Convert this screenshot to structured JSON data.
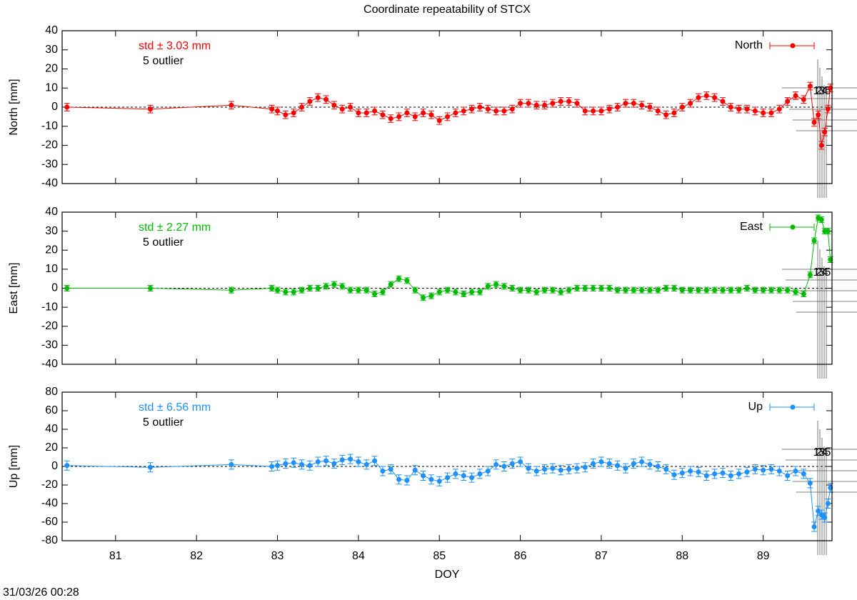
{
  "title": "Coordinate repeatability of STCX",
  "timestamp": "31/03/26 00:28",
  "chart_data": [
    {
      "type": "line",
      "ylabel": "North [mm]",
      "annotation": "std ± 3.03 mm",
      "outlier_note": "5 outlier",
      "outlier_labels": [
        "1",
        "2",
        "3",
        "4",
        "5"
      ],
      "x": [
        80.4,
        81.43,
        82.43,
        82.93,
        83.0,
        83.1,
        83.2,
        83.3,
        83.4,
        83.5,
        83.6,
        83.7,
        83.8,
        83.9,
        84.0,
        84.1,
        84.2,
        84.3,
        84.4,
        84.5,
        84.6,
        84.7,
        84.8,
        84.9,
        85.0,
        85.1,
        85.2,
        85.3,
        85.4,
        85.5,
        85.6,
        85.7,
        85.8,
        85.9,
        86.0,
        86.1,
        86.2,
        86.3,
        86.4,
        86.5,
        86.6,
        86.7,
        86.8,
        86.9,
        87.0,
        87.1,
        87.2,
        87.3,
        87.4,
        87.5,
        87.6,
        87.7,
        87.8,
        87.9,
        88.0,
        88.1,
        88.2,
        88.3,
        88.4,
        88.5,
        88.6,
        88.7,
        88.8,
        88.9,
        89.0,
        89.1,
        89.2,
        89.3,
        89.4,
        89.5,
        89.58,
        89.63,
        89.68,
        89.72,
        89.76,
        89.8,
        89.83
      ],
      "series": [
        {
          "name": "North",
          "color": "#ff0000",
          "error": 2,
          "values": [
            0,
            -1,
            1,
            -1,
            -2,
            -4,
            -3,
            0,
            3,
            5,
            4,
            1,
            -1,
            0,
            -3,
            -3,
            -2,
            -4,
            -6,
            -5,
            -3,
            -5,
            -3,
            -4,
            -7,
            -5,
            -3,
            -2,
            -1,
            0,
            -1,
            -2,
            -2,
            -1,
            2,
            2,
            1,
            1,
            2,
            3,
            3,
            2,
            -2,
            -2,
            -2,
            -1,
            0,
            2,
            2,
            1,
            0,
            -2,
            -4,
            -3,
            0,
            2,
            5,
            6,
            5,
            3,
            0,
            -1,
            -1,
            -2,
            -3,
            -3,
            -1,
            3,
            6,
            4,
            11,
            -8,
            -4,
            -20,
            -13,
            -1,
            10
          ]
        }
      ],
      "xlim": [
        80.34,
        89.85
      ],
      "xticks": [
        81,
        82,
        83,
        84,
        85,
        86,
        87,
        88,
        89
      ],
      "ylim": [
        -40,
        40
      ],
      "yticks": [
        -40,
        -30,
        -20,
        -10,
        0,
        10,
        20,
        30,
        40
      ],
      "reference_line": 0
    },
    {
      "type": "line",
      "ylabel": "East [mm]",
      "annotation": "std ± 2.27 mm",
      "outlier_note": "5 outlier",
      "outlier_labels": [
        "1",
        "2",
        "3",
        "4",
        "5"
      ],
      "x": [
        80.4,
        81.43,
        82.43,
        82.93,
        83.0,
        83.1,
        83.2,
        83.3,
        83.4,
        83.5,
        83.6,
        83.7,
        83.8,
        83.9,
        84.0,
        84.1,
        84.2,
        84.3,
        84.4,
        84.5,
        84.6,
        84.7,
        84.8,
        84.9,
        85.0,
        85.1,
        85.2,
        85.3,
        85.4,
        85.5,
        85.6,
        85.7,
        85.8,
        85.9,
        86.0,
        86.1,
        86.2,
        86.3,
        86.4,
        86.5,
        86.6,
        86.7,
        86.8,
        86.9,
        87.0,
        87.1,
        87.2,
        87.3,
        87.4,
        87.5,
        87.6,
        87.7,
        87.8,
        87.9,
        88.0,
        88.1,
        88.2,
        88.3,
        88.4,
        88.5,
        88.6,
        88.7,
        88.8,
        88.9,
        89.0,
        89.1,
        89.2,
        89.3,
        89.4,
        89.5,
        89.58,
        89.63,
        89.68,
        89.72,
        89.76,
        89.8,
        89.83
      ],
      "series": [
        {
          "name": "East",
          "color": "#00bb00",
          "error": 1.5,
          "values": [
            0,
            0,
            -1,
            0,
            -1,
            -2,
            -2,
            -1,
            0,
            0,
            1,
            2,
            1,
            -1,
            -1,
            -1,
            -3,
            -2,
            2,
            5,
            4,
            -1,
            -5,
            -4,
            -2,
            -1,
            -2,
            -3,
            -2,
            -2,
            1,
            2,
            1,
            0,
            -1,
            -1,
            -2,
            -1,
            -1,
            -2,
            -1,
            0,
            0,
            0,
            0,
            0,
            -1,
            -1,
            -1,
            -1,
            -1,
            -1,
            0,
            0,
            -1,
            -1,
            -1,
            -1,
            -1,
            -1,
            -1,
            -1,
            0,
            -1,
            -1,
            -1,
            -1,
            -1,
            -2,
            -3,
            7,
            25,
            37,
            36,
            30,
            30,
            15
          ]
        }
      ],
      "xlim": [
        80.34,
        89.85
      ],
      "xticks": [
        81,
        82,
        83,
        84,
        85,
        86,
        87,
        88,
        89
      ],
      "ylim": [
        -40,
        40
      ],
      "yticks": [
        -40,
        -30,
        -20,
        -10,
        0,
        10,
        20,
        30,
        40
      ],
      "reference_line": 0
    },
    {
      "type": "line",
      "ylabel": "Up [mm]",
      "xlabel": "DOY",
      "annotation": "std ± 6.56 mm",
      "outlier_note": "5 outlier",
      "outlier_labels": [
        "1",
        "2",
        "3",
        "4",
        "5"
      ],
      "x": [
        80.4,
        81.43,
        82.43,
        82.93,
        83.0,
        83.1,
        83.2,
        83.3,
        83.4,
        83.5,
        83.6,
        83.7,
        83.8,
        83.9,
        84.0,
        84.1,
        84.2,
        84.3,
        84.4,
        84.5,
        84.6,
        84.7,
        84.8,
        84.9,
        85.0,
        85.1,
        85.2,
        85.3,
        85.4,
        85.5,
        85.6,
        85.7,
        85.8,
        85.9,
        86.0,
        86.1,
        86.2,
        86.3,
        86.4,
        86.5,
        86.6,
        86.7,
        86.8,
        86.9,
        87.0,
        87.1,
        87.2,
        87.3,
        87.4,
        87.5,
        87.6,
        87.7,
        87.8,
        87.9,
        88.0,
        88.1,
        88.2,
        88.3,
        88.4,
        88.5,
        88.6,
        88.7,
        88.8,
        88.9,
        89.0,
        89.1,
        89.2,
        89.3,
        89.4,
        89.5,
        89.58,
        89.63,
        89.68,
        89.72,
        89.76,
        89.8,
        89.83
      ],
      "series": [
        {
          "name": "Up",
          "color": "#1e90ff",
          "error": 5,
          "values": [
            1,
            -1,
            2,
            0,
            1,
            3,
            4,
            2,
            1,
            5,
            6,
            3,
            7,
            8,
            5,
            2,
            6,
            -5,
            -3,
            -14,
            -15,
            -4,
            -10,
            -14,
            -16,
            -12,
            -8,
            -10,
            -12,
            -8,
            -5,
            2,
            0,
            3,
            5,
            -2,
            -5,
            -3,
            -2,
            -4,
            -3,
            -2,
            -1,
            3,
            5,
            3,
            1,
            -2,
            3,
            5,
            2,
            0,
            -3,
            -9,
            -7,
            -5,
            -6,
            -10,
            -8,
            -7,
            -10,
            -8,
            -6,
            -3,
            -4,
            -3,
            -5,
            -10,
            -5,
            -8,
            -18,
            -65,
            -48,
            -52,
            -55,
            -40,
            -23
          ]
        }
      ],
      "xlim": [
        80.34,
        89.85
      ],
      "xticks": [
        81,
        82,
        83,
        84,
        85,
        86,
        87,
        88,
        89
      ],
      "ylim": [
        -80,
        80
      ],
      "yticks": [
        -80,
        -60,
        -40,
        -20,
        0,
        20,
        40,
        60,
        80
      ],
      "reference_line": 0
    }
  ]
}
